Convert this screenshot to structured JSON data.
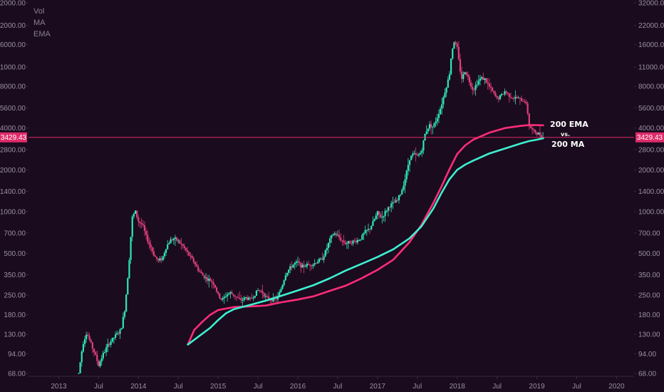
{
  "legend": [
    "Vol",
    "MA",
    "EMA"
  ],
  "current_price": "3429.43",
  "colors": {
    "background": "#1a0b1e",
    "up": "#2ee8b6",
    "down": "#e0407a",
    "ema": "#ff2d78",
    "ma": "#3ef0cf",
    "price_line": "#e02b6a",
    "axis_text": "#9a8fa0"
  },
  "chart_data": {
    "type": "line",
    "scale": "log",
    "y_ticks": [
      "68.00",
      "94.00",
      "130.00",
      "180.00",
      "250.00",
      "350.00",
      "500.00",
      "700.00",
      "1000.00",
      "1400.00",
      "2000.00",
      "2800.00",
      "4000.00",
      "5600.00",
      "8000.00",
      "11000.00",
      "16000.00",
      "22000.00",
      "32000.00"
    ],
    "x_ticks": [
      {
        "label": "2013",
        "t": 2013.0
      },
      {
        "label": "Jul",
        "t": 2013.5
      },
      {
        "label": "2014",
        "t": 2014.0
      },
      {
        "label": "Jul",
        "t": 2014.5
      },
      {
        "label": "2015",
        "t": 2015.0
      },
      {
        "label": "Jul",
        "t": 2015.5
      },
      {
        "label": "2016",
        "t": 2016.0
      },
      {
        "label": "Jul",
        "t": 2016.5
      },
      {
        "label": "2017",
        "t": 2017.0
      },
      {
        "label": "Jul",
        "t": 2017.5
      },
      {
        "label": "2018",
        "t": 2018.0
      },
      {
        "label": "Jul",
        "t": 2018.5
      },
      {
        "label": "2019",
        "t": 2019.0
      },
      {
        "label": "Jul",
        "t": 2019.5
      },
      {
        "label": "2020",
        "t": 2020.0
      }
    ],
    "ylim": [
      68,
      32000
    ],
    "xlim": [
      2012.62,
      2020.22
    ],
    "price_path": [
      [
        2013.25,
        68
      ],
      [
        2013.3,
        110
      ],
      [
        2013.35,
        135
      ],
      [
        2013.4,
        112
      ],
      [
        2013.45,
        95
      ],
      [
        2013.5,
        78
      ],
      [
        2013.55,
        92
      ],
      [
        2013.62,
        110
      ],
      [
        2013.7,
        125
      ],
      [
        2013.78,
        140
      ],
      [
        2013.83,
        200
      ],
      [
        2013.88,
        420
      ],
      [
        2013.92,
        900
      ],
      [
        2013.96,
        1000
      ],
      [
        2014.0,
        850
      ],
      [
        2014.05,
        800
      ],
      [
        2014.1,
        650
      ],
      [
        2014.15,
        560
      ],
      [
        2014.2,
        480
      ],
      [
        2014.25,
        440
      ],
      [
        2014.3,
        460
      ],
      [
        2014.35,
        560
      ],
      [
        2014.4,
        620
      ],
      [
        2014.45,
        640
      ],
      [
        2014.5,
        610
      ],
      [
        2014.55,
        570
      ],
      [
        2014.6,
        520
      ],
      [
        2014.65,
        470
      ],
      [
        2014.7,
        430
      ],
      [
        2014.75,
        380
      ],
      [
        2014.8,
        350
      ],
      [
        2014.85,
        330
      ],
      [
        2014.9,
        320
      ],
      [
        2014.95,
        300
      ],
      [
        2015.0,
        250
      ],
      [
        2015.05,
        230
      ],
      [
        2015.1,
        250
      ],
      [
        2015.15,
        260
      ],
      [
        2015.2,
        250
      ],
      [
        2015.25,
        235
      ],
      [
        2015.3,
        230
      ],
      [
        2015.35,
        240
      ],
      [
        2015.4,
        230
      ],
      [
        2015.45,
        250
      ],
      [
        2015.5,
        270
      ],
      [
        2015.55,
        265
      ],
      [
        2015.6,
        240
      ],
      [
        2015.65,
        235
      ],
      [
        2015.7,
        230
      ],
      [
        2015.75,
        240
      ],
      [
        2015.8,
        290
      ],
      [
        2015.85,
        360
      ],
      [
        2015.9,
        390
      ],
      [
        2015.95,
        420
      ],
      [
        2016.0,
        430
      ],
      [
        2016.05,
        400
      ],
      [
        2016.1,
        410
      ],
      [
        2016.15,
        415
      ],
      [
        2016.2,
        420
      ],
      [
        2016.25,
        440
      ],
      [
        2016.3,
        450
      ],
      [
        2016.35,
        520
      ],
      [
        2016.4,
        620
      ],
      [
        2016.45,
        700
      ],
      [
        2016.5,
        670
      ],
      [
        2016.55,
        620
      ],
      [
        2016.6,
        590
      ],
      [
        2016.65,
        600
      ],
      [
        2016.7,
        610
      ],
      [
        2016.75,
        620
      ],
      [
        2016.8,
        650
      ],
      [
        2016.85,
        720
      ],
      [
        2016.9,
        750
      ],
      [
        2016.95,
        850
      ],
      [
        2017.0,
        980
      ],
      [
        2017.05,
        900
      ],
      [
        2017.1,
        1000
      ],
      [
        2017.15,
        1100
      ],
      [
        2017.2,
        1150
      ],
      [
        2017.25,
        1200
      ],
      [
        2017.3,
        1400
      ],
      [
        2017.35,
        1750
      ],
      [
        2017.4,
        2400
      ],
      [
        2017.45,
        2600
      ],
      [
        2017.5,
        2500
      ],
      [
        2017.55,
        2700
      ],
      [
        2017.6,
        3700
      ],
      [
        2017.65,
        4200
      ],
      [
        2017.7,
        4100
      ],
      [
        2017.75,
        4800
      ],
      [
        2017.8,
        5800
      ],
      [
        2017.85,
        7500
      ],
      [
        2017.9,
        9500
      ],
      [
        2017.93,
        14000
      ],
      [
        2017.96,
        17000
      ],
      [
        2018.0,
        15000
      ],
      [
        2018.03,
        11000
      ],
      [
        2018.06,
        9000
      ],
      [
        2018.1,
        10500
      ],
      [
        2018.15,
        8800
      ],
      [
        2018.2,
        7500
      ],
      [
        2018.25,
        8500
      ],
      [
        2018.3,
        9200
      ],
      [
        2018.35,
        9000
      ],
      [
        2018.4,
        8000
      ],
      [
        2018.45,
        7200
      ],
      [
        2018.5,
        6500
      ],
      [
        2018.55,
        6800
      ],
      [
        2018.6,
        7400
      ],
      [
        2018.65,
        6900
      ],
      [
        2018.7,
        6600
      ],
      [
        2018.75,
        6600
      ],
      [
        2018.8,
        6400
      ],
      [
        2018.85,
        6300
      ],
      [
        2018.88,
        5500
      ],
      [
        2018.9,
        4200
      ],
      [
        2018.95,
        3800
      ],
      [
        2019.0,
        3700
      ],
      [
        2019.05,
        3550
      ],
      [
        2019.08,
        3429
      ]
    ],
    "series": [
      {
        "name": "200 EMA",
        "values": [
          [
            2014.62,
            110
          ],
          [
            2014.7,
            140
          ],
          [
            2014.8,
            160
          ],
          [
            2014.9,
            180
          ],
          [
            2015.0,
            195
          ],
          [
            2015.2,
            205
          ],
          [
            2015.4,
            207
          ],
          [
            2015.6,
            210
          ],
          [
            2015.8,
            222
          ],
          [
            2016.0,
            232
          ],
          [
            2016.2,
            245
          ],
          [
            2016.4,
            268
          ],
          [
            2016.6,
            292
          ],
          [
            2016.8,
            330
          ],
          [
            2017.0,
            380
          ],
          [
            2017.2,
            450
          ],
          [
            2017.4,
            600
          ],
          [
            2017.55,
            800
          ],
          [
            2017.7,
            1150
          ],
          [
            2017.8,
            1500
          ],
          [
            2017.9,
            2000
          ],
          [
            2018.0,
            2600
          ],
          [
            2018.1,
            3000
          ],
          [
            2018.2,
            3300
          ],
          [
            2018.4,
            3700
          ],
          [
            2018.6,
            4000
          ],
          [
            2018.8,
            4150
          ],
          [
            2018.9,
            4200
          ],
          [
            2019.0,
            4200
          ],
          [
            2019.08,
            4190
          ]
        ]
      },
      {
        "name": "200 MA",
        "values": [
          [
            2014.62,
            110
          ],
          [
            2014.75,
            125
          ],
          [
            2014.9,
            145
          ],
          [
            2015.0,
            165
          ],
          [
            2015.1,
            185
          ],
          [
            2015.2,
            198
          ],
          [
            2015.4,
            212
          ],
          [
            2015.6,
            228
          ],
          [
            2015.8,
            248
          ],
          [
            2016.0,
            270
          ],
          [
            2016.2,
            295
          ],
          [
            2016.4,
            330
          ],
          [
            2016.6,
            375
          ],
          [
            2016.8,
            420
          ],
          [
            2017.0,
            470
          ],
          [
            2017.2,
            535
          ],
          [
            2017.4,
            640
          ],
          [
            2017.55,
            780
          ],
          [
            2017.7,
            1050
          ],
          [
            2017.8,
            1350
          ],
          [
            2017.9,
            1700
          ],
          [
            2018.0,
            2000
          ],
          [
            2018.1,
            2180
          ],
          [
            2018.2,
            2330
          ],
          [
            2018.4,
            2620
          ],
          [
            2018.6,
            2850
          ],
          [
            2018.8,
            3100
          ],
          [
            2018.9,
            3220
          ],
          [
            2019.0,
            3300
          ],
          [
            2019.08,
            3380
          ]
        ]
      }
    ],
    "annotations": [
      "200 EMA",
      "vs.",
      "200 MA"
    ]
  }
}
